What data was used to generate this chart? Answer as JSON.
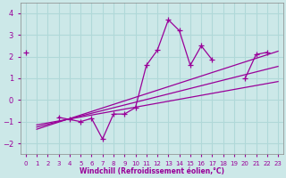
{
  "xlabel": "Windchill (Refroidissement éolien,°C)",
  "x_data": [
    0,
    1,
    2,
    3,
    4,
    5,
    6,
    7,
    8,
    9,
    10,
    11,
    12,
    13,
    14,
    15,
    16,
    17,
    18,
    19,
    20,
    21,
    22,
    23
  ],
  "line1": [
    2.2,
    null,
    null,
    -0.8,
    -0.9,
    -1.0,
    -0.85,
    -1.8,
    -0.65,
    -0.65,
    -0.35,
    1.6,
    2.3,
    3.7,
    3.2,
    1.6,
    2.5,
    1.85,
    null,
    null,
    1.0,
    2.1,
    2.2,
    null
  ],
  "reg_start_x": 1,
  "reg_end_x": 23,
  "reg_lines": [
    {
      "x0": 1,
      "y0": -1.35,
      "x1": 23,
      "y1": 2.25
    },
    {
      "x0": 1,
      "y0": -1.25,
      "x1": 23,
      "y1": 1.55
    },
    {
      "x0": 1,
      "y0": -1.15,
      "x1": 23,
      "y1": 0.85
    }
  ],
  "color": "#990099",
  "bg_color": "#cce8e8",
  "grid_color": "#b0d8d8",
  "ylim": [
    -2.5,
    4.5
  ],
  "yticks": [
    -2,
    -1,
    0,
    1,
    2,
    3,
    4
  ],
  "xlim": [
    -0.5,
    23.5
  ],
  "marker": "+"
}
